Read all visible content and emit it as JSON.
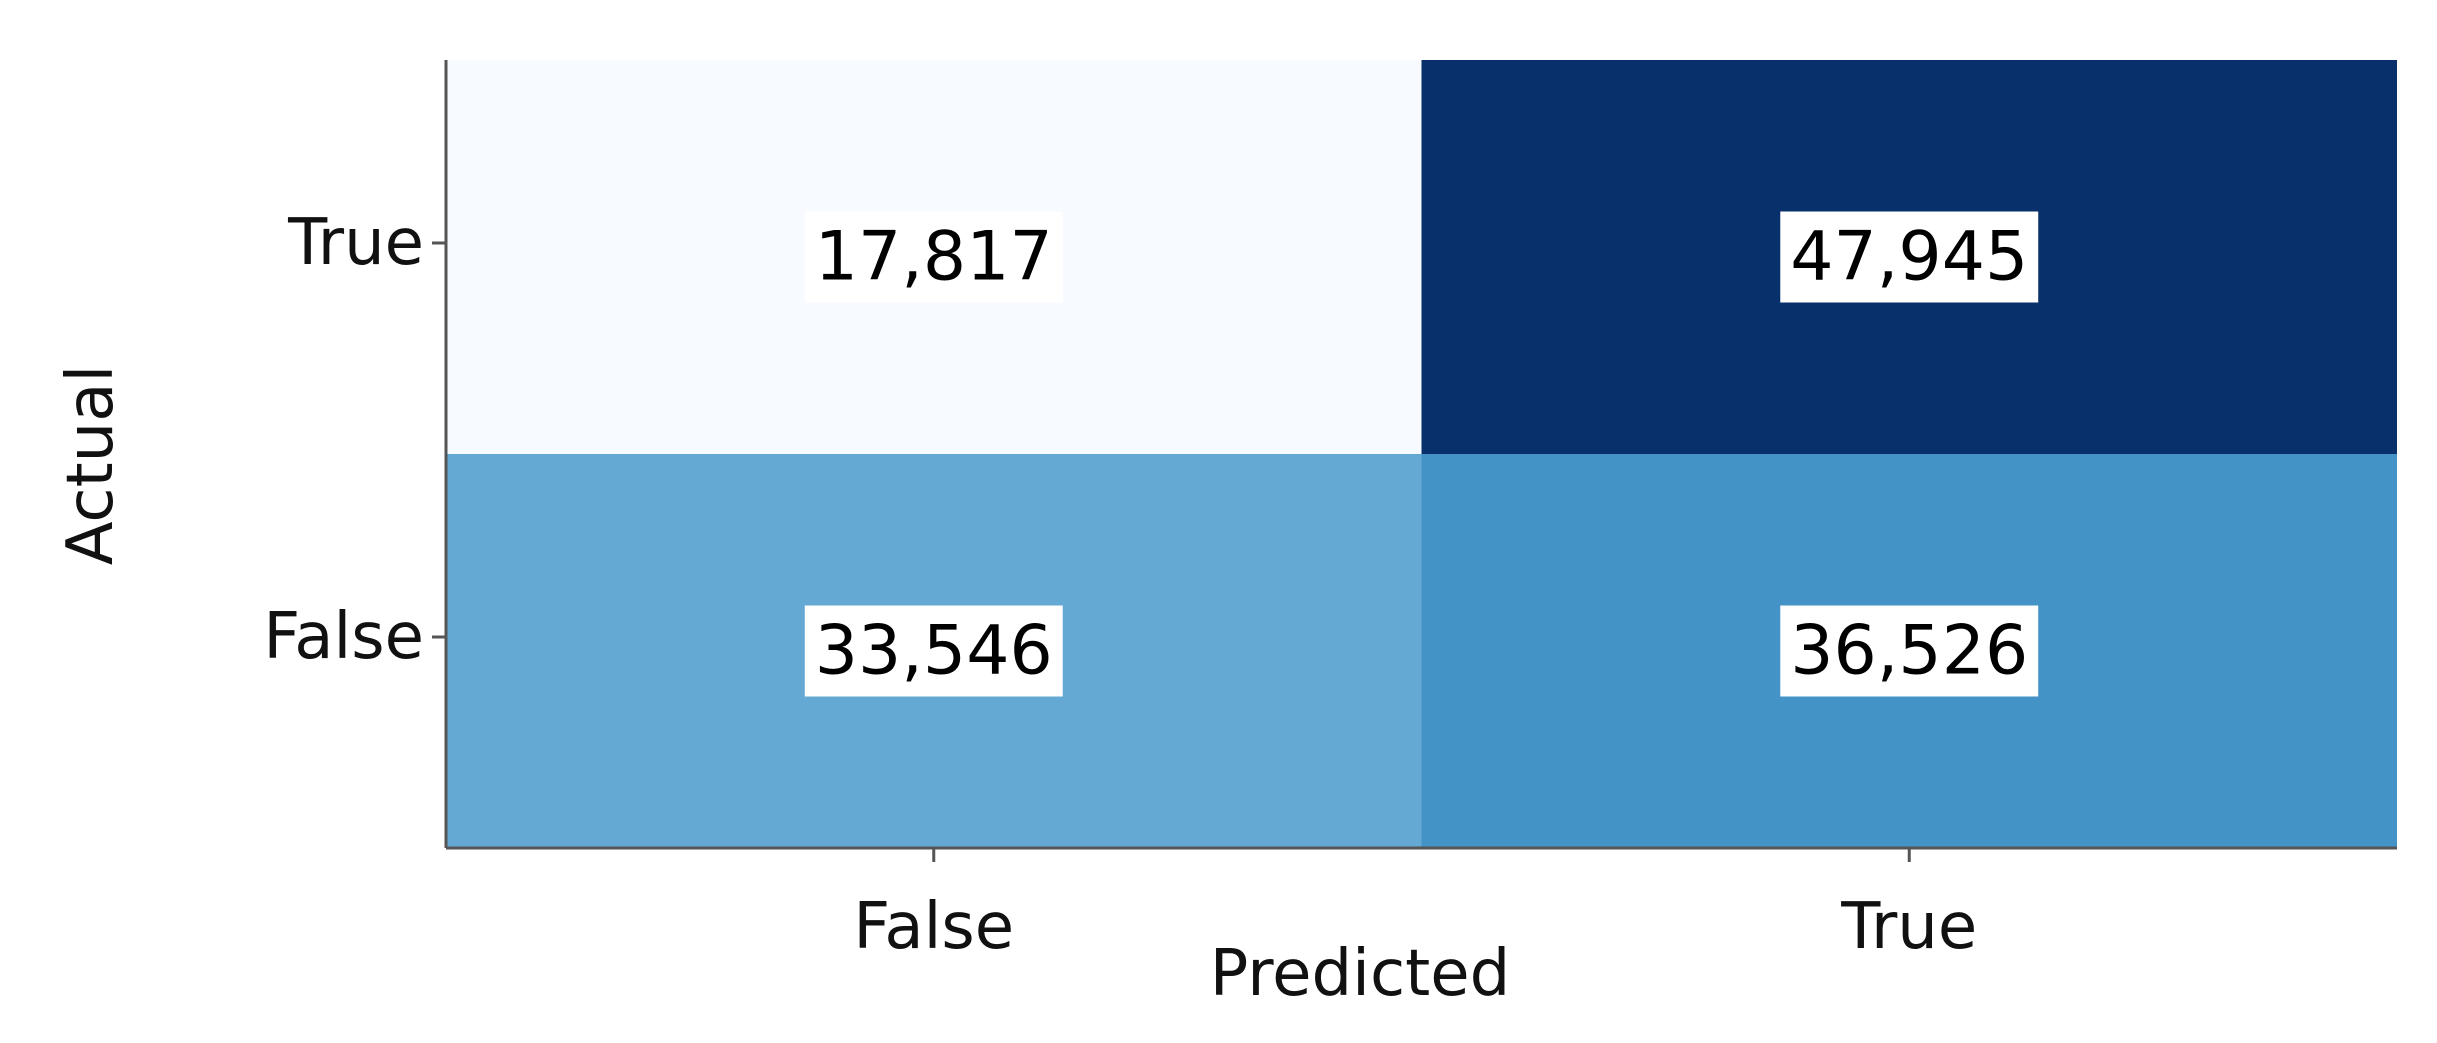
{
  "chart_data": {
    "type": "heatmap",
    "x_categories": [
      "False",
      "True"
    ],
    "y_categories": [
      "True",
      "False"
    ],
    "values": [
      [
        17817,
        47945
      ],
      [
        33546,
        36526
      ]
    ],
    "value_labels": [
      [
        "17,817",
        "47,945"
      ],
      [
        "33,546",
        "36,526"
      ]
    ],
    "xlabel": "Predicted",
    "ylabel": "Actual",
    "colormap": "Blues",
    "color_low": "#f7fbff",
    "color_high": "#08306b"
  }
}
